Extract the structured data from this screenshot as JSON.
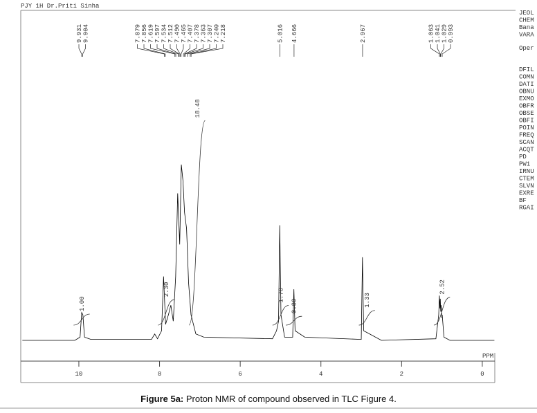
{
  "chart_data": {
    "type": "nmr",
    "title": "PJY 1H Dr.Priti Sinha",
    "x_label": "PPM",
    "xlim": [
      11.44,
      -0.31
    ],
    "ylim": [
      0,
      100
    ],
    "xticks": [
      10,
      8,
      6,
      4,
      2,
      0
    ],
    "color": "#000000",
    "x": [
      11.4,
      10.1,
      9.97,
      9.93,
      9.9,
      9.86,
      9.7,
      8.2,
      8.12,
      8.05,
      7.95,
      7.9,
      7.85,
      7.78,
      7.72,
      7.66,
      7.6,
      7.55,
      7.5,
      7.46,
      7.42,
      7.38,
      7.33,
      7.28,
      7.22,
      7.1,
      6.9,
      5.2,
      5.1,
      5.05,
      5.02,
      4.99,
      4.9,
      4.7,
      4.67,
      4.64,
      4.4,
      3.0,
      2.97,
      2.94,
      2.5,
      1.15,
      1.08,
      1.063,
      1.05,
      1.041,
      1.03,
      1.02,
      1.0,
      0.993,
      0.95,
      0.8,
      -0.3
    ],
    "values": [
      0,
      0,
      1,
      8.7,
      8,
      1,
      0.3,
      0.3,
      2,
      0.5,
      3,
      20,
      5,
      8,
      11,
      6,
      20,
      46,
      30,
      55,
      50,
      40,
      35,
      18,
      8,
      2,
      1,
      0.5,
      3,
      6,
      36,
      8,
      1,
      1,
      16,
      3,
      1,
      0.3,
      26,
      3,
      0,
      0.5,
      8,
      14,
      10,
      13,
      9,
      11,
      7,
      8,
      1,
      0,
      0
    ],
    "peaks": [
      9.931,
      9.904,
      7.879,
      7.856,
      7.619,
      7.597,
      7.534,
      7.512,
      {
        "value": 7.49,
        "label": "7.490"
      },
      7.465,
      7.407,
      7.378,
      7.363,
      7.307,
      {
        "value": 7.24,
        "label": "7.240"
      },
      7.218,
      5.016,
      4.666,
      2.967,
      1.063,
      1.041,
      1.029,
      0.993
    ],
    "integrals": {
      "x": [
        9.93,
        7.84,
        7.07,
        5.0,
        4.67,
        2.86,
        1.0
      ],
      "values": [
        1,
        2.3,
        18.48,
        1.78,
        0.8,
        1.33,
        2.52
      ],
      "value_labels": [
        "1.00",
        "2.30",
        "18.48",
        "1.78",
        "0.80",
        "1.33",
        "2.52"
      ]
    },
    "parameters": [
      "JEOL",
      "CHEM",
      "Bana",
      "VARA",
      "Oper",
      "DFIL",
      "COMN",
      "DATI",
      "OBNU",
      "EXMO",
      "OBFR",
      "OBSE",
      "OBFI",
      "POIN",
      "FREQ",
      "SCAN",
      "ACQT",
      "PD",
      "PW1",
      "IRNU",
      "CTEM",
      "SLVN",
      "EXRE",
      "BF",
      "RGAI"
    ],
    "caption": {
      "label": "Figure 5a:",
      "text": "Proton NMR of compound observed in TLC Figure 4."
    }
  }
}
